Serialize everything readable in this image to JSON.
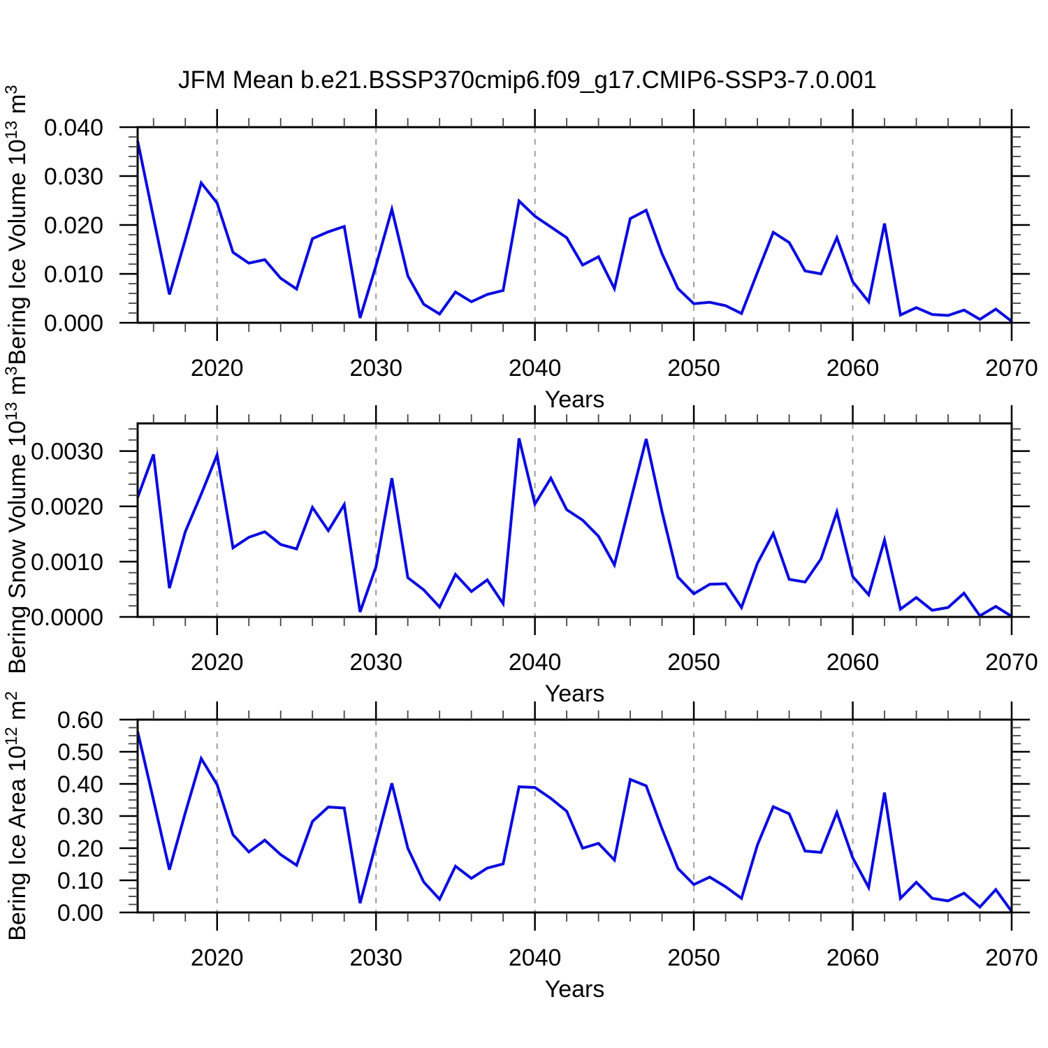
{
  "chart_data": {
    "type": "line",
    "title": "JFM Mean b.e21.BSSP370cmip6.f09_g17.CMIP6-SSP3-7.0.001",
    "x_label": "Years",
    "line_color": "#0a0ae0",
    "grid": "vertical-dashed",
    "grid_color": "#949494",
    "x_range": [
      2015,
      2070
    ],
    "x_major_ticks": [
      2020,
      2030,
      2040,
      2050,
      2060,
      2070
    ],
    "x_minor_tick_step": 2,
    "gridlines_x": [
      2020,
      2030,
      2040,
      2050,
      2060
    ],
    "x": [
      2015,
      2016,
      2017,
      2018,
      2019,
      2020,
      2021,
      2022,
      2023,
      2024,
      2025,
      2026,
      2027,
      2028,
      2029,
      2030,
      2031,
      2032,
      2033,
      2034,
      2035,
      2036,
      2037,
      2038,
      2039,
      2040,
      2041,
      2042,
      2043,
      2044,
      2045,
      2046,
      2047,
      2048,
      2049,
      2050,
      2051,
      2052,
      2053,
      2054,
      2055,
      2056,
      2057,
      2058,
      2059,
      2060,
      2061,
      2062,
      2063,
      2064,
      2065,
      2066,
      2067,
      2068,
      2069,
      2070
    ],
    "panels": [
      {
        "name": "bering-ice-volume",
        "ylabel": "Bering Ice Volume 10^13 m^3",
        "ylabel_parts": [
          {
            "t": "Bering Ice Volume 10"
          },
          {
            "t": "13",
            "sup": true
          },
          {
            "t": " m"
          },
          {
            "t": "3",
            "sup": true
          }
        ],
        "ylim": [
          0,
          0.04
        ],
        "ytick_step": 0.01,
        "yminor_step": 0.002,
        "ytick_label_max": 0.04,
        "ytick_decimals": 3,
        "values": [
          0.0372,
          0.0215,
          0.0058,
          0.017,
          0.0286,
          0.0245,
          0.0144,
          0.0122,
          0.0129,
          0.0091,
          0.0069,
          0.0172,
          0.0186,
          0.0197,
          0.001,
          0.0117,
          0.0232,
          0.0096,
          0.0038,
          0.0018,
          0.0063,
          0.0043,
          0.0058,
          0.0066,
          0.0249,
          0.0218,
          0.0196,
          0.0174,
          0.0118,
          0.0135,
          0.007,
          0.0213,
          0.023,
          0.0141,
          0.007,
          0.0039,
          0.0042,
          0.0035,
          0.0019,
          0.0103,
          0.0185,
          0.0164,
          0.0106,
          0.01,
          0.0174,
          0.0084,
          0.0043,
          0.0203,
          0.0016,
          0.0031,
          0.0017,
          0.0015,
          0.0026,
          0.0007,
          0.0028,
          0.0003
        ]
      },
      {
        "name": "bering-snow-volume",
        "ylabel": "Bering Snow Volume 10^13 m^3",
        "ylabel_parts": [
          {
            "t": "Bering Snow Volume 10"
          },
          {
            "t": "13",
            "sup": true
          },
          {
            "t": " m"
          },
          {
            "t": "3",
            "sup": true
          }
        ],
        "ylim": [
          0,
          0.0035
        ],
        "ytick_step": 0.001,
        "yminor_step": 0.0002,
        "ytick_label_max": 0.003,
        "ytick_decimals": 4,
        "values": [
          0.00216,
          0.00294,
          0.00052,
          0.00154,
          0.00222,
          0.00293,
          0.00125,
          0.00144,
          0.00154,
          0.00131,
          0.00123,
          0.00198,
          0.00156,
          0.00203,
          9e-05,
          0.00091,
          0.00251,
          0.00071,
          0.00049,
          0.00018,
          0.00077,
          0.00046,
          0.00067,
          0.00024,
          0.00323,
          0.00204,
          0.00251,
          0.00194,
          0.00175,
          0.00146,
          0.00094,
          0.00208,
          0.00322,
          0.0019,
          0.00072,
          0.00042,
          0.00059,
          0.0006,
          0.00017,
          0.00097,
          0.00151,
          0.00068,
          0.00063,
          0.00105,
          0.0019,
          0.00073,
          0.0004,
          0.00139,
          0.00014,
          0.00035,
          0.00012,
          0.00017,
          0.00043,
          2e-05,
          0.00019,
          1e-05
        ]
      },
      {
        "name": "bering-ice-area",
        "ylabel": "Bering Ice Area 10^12 m^2",
        "ylabel_parts": [
          {
            "t": "Bering Ice Area 10"
          },
          {
            "t": "12",
            "sup": true
          },
          {
            "t": " m"
          },
          {
            "t": "2",
            "sup": true
          }
        ],
        "ylim": [
          0,
          0.6
        ],
        "ytick_step": 0.1,
        "yminor_step": 0.025,
        "ytick_label_max": 0.6,
        "ytick_decimals": 2,
        "values": [
          0.563,
          0.35,
          0.133,
          0.31,
          0.479,
          0.398,
          0.242,
          0.188,
          0.225,
          0.18,
          0.147,
          0.283,
          0.328,
          0.325,
          0.029,
          0.215,
          0.402,
          0.2,
          0.095,
          0.041,
          0.144,
          0.106,
          0.138,
          0.151,
          0.391,
          0.389,
          0.355,
          0.315,
          0.2,
          0.215,
          0.163,
          0.414,
          0.394,
          0.26,
          0.137,
          0.087,
          0.11,
          0.08,
          0.044,
          0.21,
          0.329,
          0.307,
          0.191,
          0.187,
          0.311,
          0.17,
          0.078,
          0.373,
          0.044,
          0.094,
          0.044,
          0.036,
          0.06,
          0.017,
          0.071,
          0.003
        ]
      }
    ]
  }
}
